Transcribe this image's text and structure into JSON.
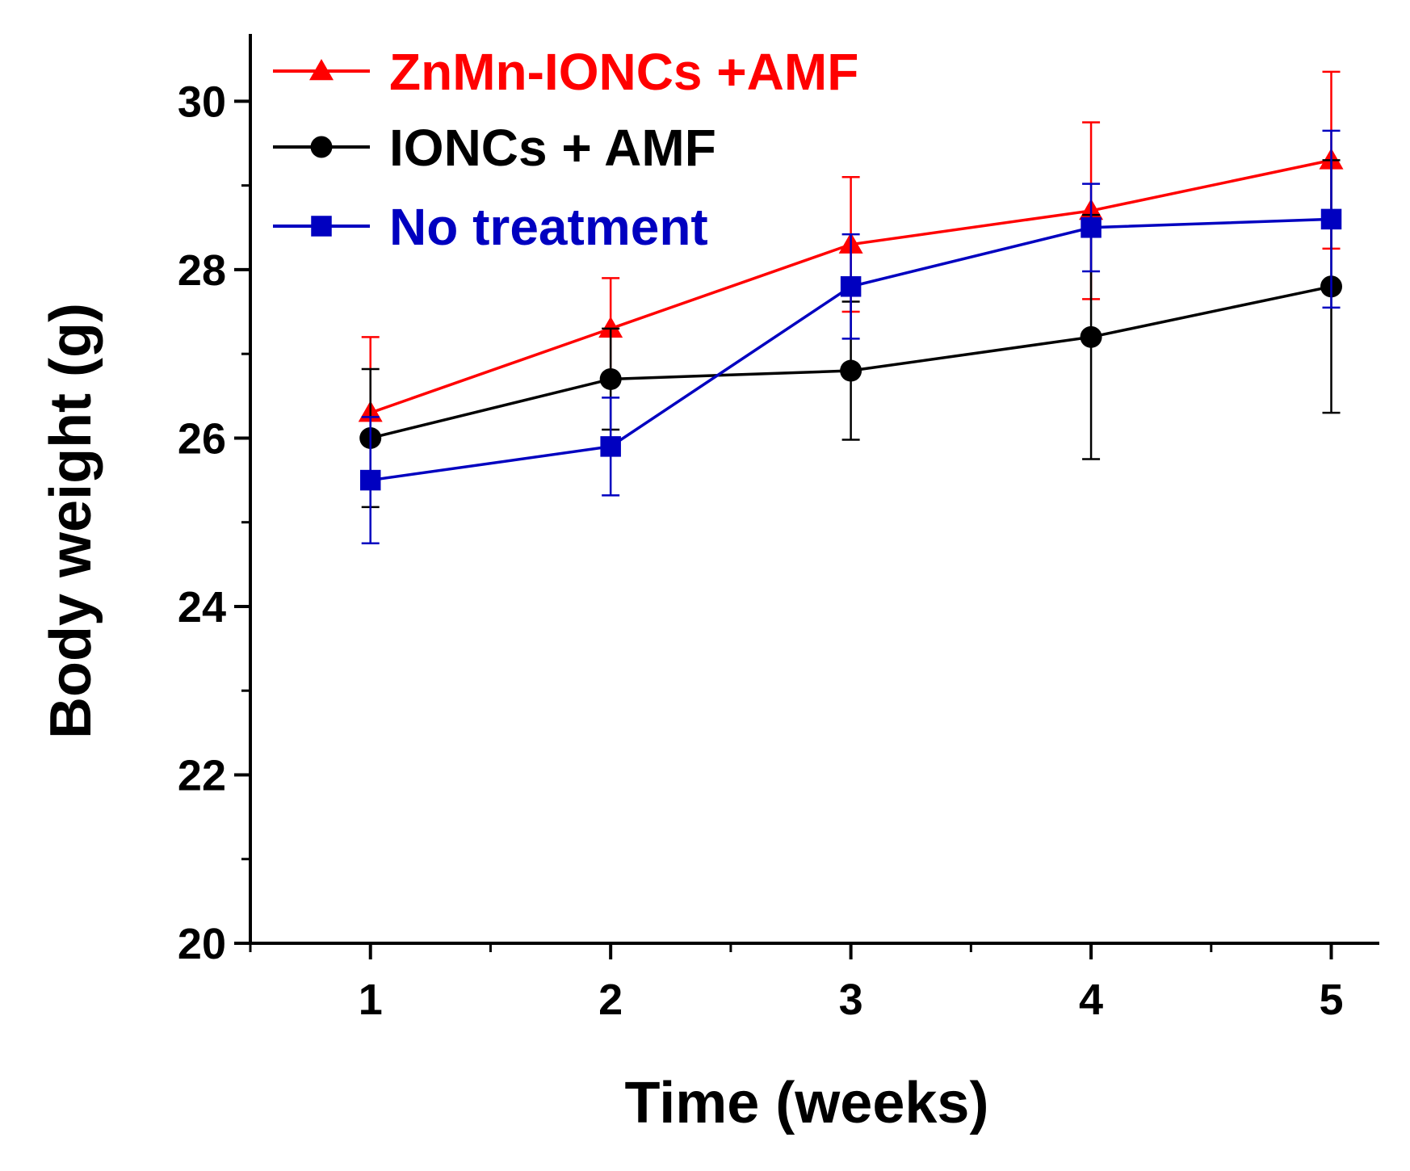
{
  "chart_data": {
    "type": "line",
    "xlabel": "Time (weeks)",
    "ylabel": "Body weight (g)",
    "xlim": [
      0.5,
      5.2
    ],
    "ylim": [
      20,
      30.8
    ],
    "x": [
      1,
      2,
      3,
      4,
      5
    ],
    "xticks": [
      1,
      2,
      3,
      4,
      5
    ],
    "xtick_labels": [
      "1",
      "2",
      "3",
      "4",
      "5"
    ],
    "yticks": [
      20,
      22,
      24,
      26,
      28,
      30
    ],
    "ytick_labels": [
      "20",
      "22",
      "24",
      "26",
      "28",
      "30"
    ],
    "legend_position": "top-left",
    "series": [
      {
        "name": "ZnMn-IONCs +AMF",
        "color": "#ff0000",
        "marker": "triangle",
        "values": [
          26.3,
          27.3,
          28.3,
          28.7,
          29.3
        ],
        "error": [
          0.9,
          0.6,
          0.8,
          1.05,
          1.05
        ]
      },
      {
        "name": "IONCs + AMF",
        "color": "#000000",
        "marker": "circle",
        "values": [
          26.0,
          26.7,
          26.8,
          27.2,
          27.8
        ],
        "error": [
          0.82,
          0.6,
          0.82,
          1.45,
          1.5
        ]
      },
      {
        "name": "No treatment",
        "color": "#0000c0",
        "marker": "square",
        "values": [
          25.5,
          25.9,
          27.8,
          28.5,
          28.6
        ],
        "error": [
          0.75,
          0.58,
          0.62,
          0.52,
          1.05
        ]
      }
    ]
  }
}
